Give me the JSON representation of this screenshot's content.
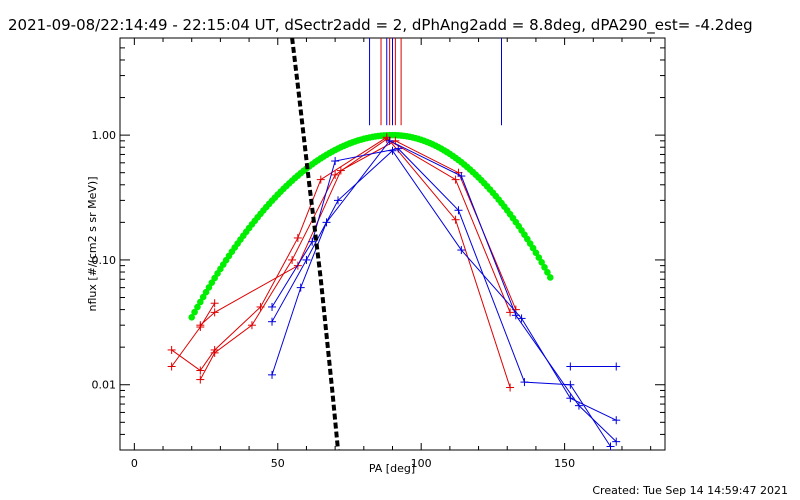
{
  "chart_data": {
    "type": "line",
    "title": "2021-09-08/22:14:49 - 22:15:04 UT, dSectr2add = 2, dPhAng2add = 8.8deg, dPA290_est= -4.2deg",
    "xlabel": "PA [deg]",
    "ylabel": "nflux [#/(cm2 s sr MeV)]",
    "footer": "Created: Tue Sep 14 14:59:47 2021",
    "xlim": [
      -5,
      185
    ],
    "ylim": [
      0.003,
      6
    ],
    "yscale": "log",
    "grid": false,
    "xticks": [
      {
        "value": 0,
        "label": "0"
      },
      {
        "value": 50,
        "label": "50"
      },
      {
        "value": 100,
        "label": "100"
      },
      {
        "value": 150,
        "label": "150"
      }
    ],
    "yticks": [
      {
        "value": 0.01,
        "label": "0.01"
      },
      {
        "value": 0.1,
        "label": "0.10"
      },
      {
        "value": 1,
        "label": "1.00"
      }
    ],
    "colors": {
      "red": "#dd0000",
      "blue": "#0000dd",
      "green": "#00ee00",
      "black": "#000000"
    },
    "red_series": [
      {
        "x": [
          13,
          23,
          28
        ],
        "y": [
          0.014,
          0.029,
          0.045
        ]
      },
      {
        "x": [
          13,
          23,
          28,
          44,
          57,
          65,
          88,
          112,
          131
        ],
        "y": [
          0.019,
          0.013,
          0.019,
          0.042,
          0.15,
          0.44,
          0.96,
          0.21,
          0.0095
        ]
      },
      {
        "x": [
          23,
          28,
          41,
          55,
          70,
          88,
          112,
          131
        ],
        "y": [
          0.011,
          0.018,
          0.03,
          0.1,
          0.48,
          0.93,
          0.44,
          0.038
        ]
      },
      {
        "x": [
          23,
          28,
          57,
          72,
          91,
          113,
          133
        ],
        "y": [
          0.03,
          0.038,
          0.09,
          0.52,
          0.9,
          0.5,
          0.04
        ]
      }
    ],
    "blue_series": [
      {
        "x": [
          48,
          58,
          67,
          89,
          114,
          133,
          155,
          168
        ],
        "y": [
          0.012,
          0.06,
          0.2,
          0.9,
          0.47,
          0.036,
          0.0068,
          0.0035
        ]
      },
      {
        "x": [
          48,
          60,
          71,
          90,
          114,
          135,
          152,
          168
        ],
        "y": [
          0.032,
          0.1,
          0.3,
          0.75,
          0.12,
          0.034,
          0.0078,
          0.0052
        ]
      },
      {
        "x": [
          48,
          62,
          70,
          92,
          113,
          136,
          152,
          166
        ],
        "y": [
          0.042,
          0.14,
          0.62,
          0.78,
          0.25,
          0.0105,
          0.01,
          0.0032
        ]
      },
      {
        "x": [
          152,
          168
        ],
        "y": [
          0.014,
          0.014
        ]
      }
    ],
    "green_fit": {
      "peak_x": 90,
      "peak_y": 1,
      "x_start": 20,
      "x_end": 145
    },
    "black_curve": {
      "x": [
        55,
        57,
        59,
        61,
        63,
        65,
        67,
        69,
        71
      ],
      "y": [
        6,
        2.5,
        1,
        0.4,
        0.17,
        0.07,
        0.025,
        0.009,
        0.003
      ]
    },
    "top_markers": [
      {
        "x": 82,
        "color": "blue",
        "y_low": 1.2
      },
      {
        "x": 86,
        "color": "red",
        "y_low": 1.2
      },
      {
        "x": 88,
        "color": "blue",
        "y_low": 1.2
      },
      {
        "x": 89,
        "color": "red",
        "y_low": 1.2
      },
      {
        "x": 90,
        "color": "blue",
        "y_low": 1.2
      },
      {
        "x": 91,
        "color": "red",
        "y_low": 1.2
      },
      {
        "x": 93,
        "color": "red",
        "y_low": 1.2
      },
      {
        "x": 128,
        "color": "blue",
        "y_low": 1.2
      }
    ]
  }
}
